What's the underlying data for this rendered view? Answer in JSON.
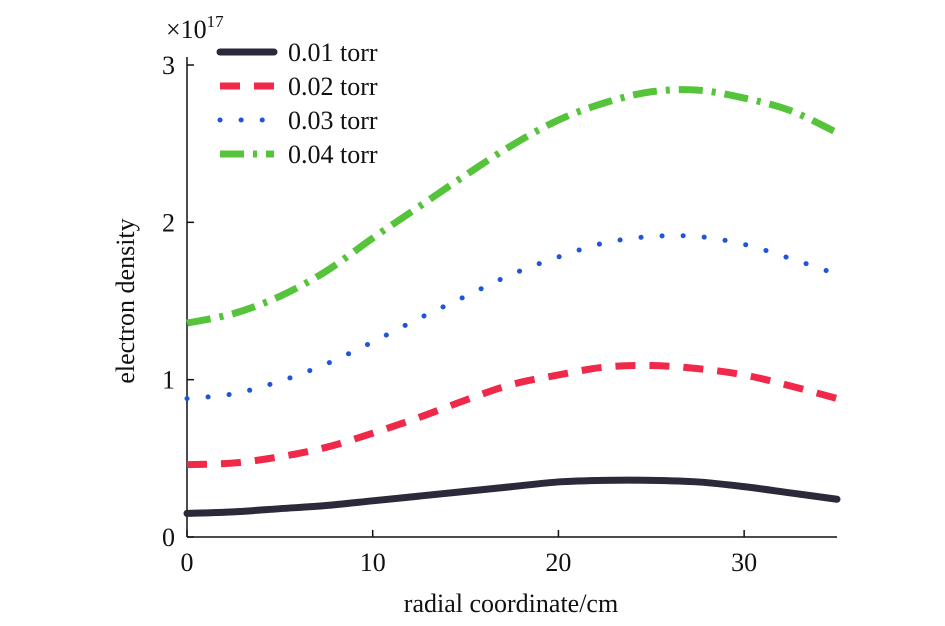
{
  "chart_data": {
    "type": "line",
    "title": "",
    "xlabel": "radial coordinate/cm",
    "ylabel": "electron density",
    "y_multiplier": {
      "base": "×10",
      "exponent": "17"
    },
    "xlim": [
      0,
      35
    ],
    "ylim": [
      0,
      3
    ],
    "x_ticks": [
      0,
      10,
      20,
      30
    ],
    "y_ticks": [
      0,
      1,
      2,
      3
    ],
    "x_tick_labels": [
      "0",
      "10",
      "20",
      "30"
    ],
    "y_tick_labels": [
      "0",
      "1",
      "2",
      "3"
    ],
    "grid": false,
    "legend_position": "top-left",
    "x": [
      0,
      2.5,
      5,
      7.5,
      10,
      12.5,
      15,
      17.5,
      20,
      22.5,
      25,
      27.5,
      30,
      32.5,
      35
    ],
    "series": [
      {
        "name": "0.01 torr",
        "color": "#2a2a3a",
        "style": "solid",
        "values": [
          0.15,
          0.16,
          0.18,
          0.2,
          0.23,
          0.26,
          0.29,
          0.32,
          0.35,
          0.36,
          0.36,
          0.35,
          0.32,
          0.28,
          0.24
        ]
      },
      {
        "name": "0.02 torr",
        "color": "#f0284a",
        "style": "dashed",
        "values": [
          0.46,
          0.47,
          0.51,
          0.57,
          0.66,
          0.76,
          0.87,
          0.97,
          1.03,
          1.08,
          1.09,
          1.07,
          1.03,
          0.96,
          0.88
        ]
      },
      {
        "name": "0.03 torr",
        "color": "#1f55d6",
        "style": "dotted",
        "values": [
          0.88,
          0.91,
          0.99,
          1.1,
          1.24,
          1.39,
          1.53,
          1.67,
          1.78,
          1.87,
          1.91,
          1.91,
          1.86,
          1.77,
          1.67
        ]
      },
      {
        "name": "0.04 torr",
        "color": "#55c43a",
        "style": "dashdot",
        "values": [
          1.36,
          1.42,
          1.53,
          1.69,
          1.9,
          2.1,
          2.3,
          2.49,
          2.65,
          2.76,
          2.83,
          2.84,
          2.79,
          2.71,
          2.57
        ]
      }
    ]
  }
}
